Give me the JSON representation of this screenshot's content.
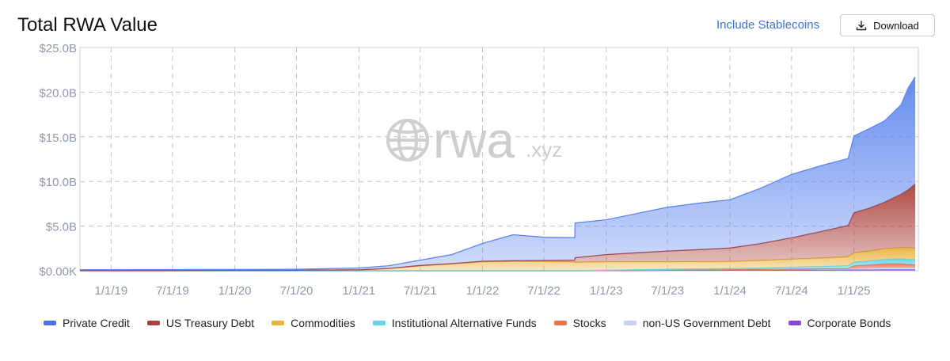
{
  "header": {
    "title": "Total RWA Value",
    "stablecoin_toggle": "Include Stablecoins",
    "download_label": "Download"
  },
  "watermark": {
    "text": "rwa",
    "suffix": ".xyz"
  },
  "chart_data": {
    "type": "area",
    "title": "Total RWA Value",
    "xlabel": "",
    "ylabel": "",
    "ylim": [
      0,
      25
    ],
    "y_unit": "B USD",
    "yticks": [
      0,
      5,
      10,
      15,
      20,
      25
    ],
    "ytick_labels": [
      "$0.00K",
      "$5.0B",
      "$10.0B",
      "$15.0B",
      "$20.0B",
      "$25.0B"
    ],
    "xlim": [
      "2018-10-01",
      "2025-07-10"
    ],
    "xticks": [
      "2019-01-01",
      "2019-07-01",
      "2020-01-01",
      "2020-07-01",
      "2021-01-01",
      "2021-07-01",
      "2022-01-01",
      "2022-07-01",
      "2023-01-01",
      "2023-07-01",
      "2024-01-01",
      "2024-07-01",
      "2025-01-01"
    ],
    "xtick_labels": [
      "1/1/19",
      "7/1/19",
      "1/1/20",
      "7/1/20",
      "1/1/21",
      "7/1/21",
      "1/1/22",
      "7/1/22",
      "1/1/23",
      "7/1/23",
      "1/1/24",
      "7/1/24",
      "1/1/25"
    ],
    "grid": true,
    "stacked": true,
    "legend_position": "bottom",
    "x": [
      "2018-10-01",
      "2019-01-01",
      "2019-07-01",
      "2020-01-01",
      "2020-07-01",
      "2021-01-01",
      "2021-04-01",
      "2021-07-01",
      "2021-10-01",
      "2022-01-01",
      "2022-04-01",
      "2022-07-01",
      "2022-09-30",
      "2022-10-01",
      "2023-01-01",
      "2023-04-01",
      "2023-07-01",
      "2023-10-01",
      "2024-01-01",
      "2024-04-01",
      "2024-07-01",
      "2024-10-01",
      "2024-12-15",
      "2025-01-01",
      "2025-02-15",
      "2025-04-01",
      "2025-05-20",
      "2025-06-10",
      "2025-07-01"
    ],
    "series": [
      {
        "name": "Corporate Bonds",
        "color": "#8a45d6",
        "values": [
          0,
          0,
          0,
          0,
          0,
          0,
          0,
          0,
          0,
          0,
          0,
          0,
          0,
          0,
          0.02,
          0.03,
          0.04,
          0.05,
          0.06,
          0.07,
          0.08,
          0.09,
          0.1,
          0.1,
          0.1,
          0.12,
          0.12,
          0.12,
          0.12
        ]
      },
      {
        "name": "non-US Government Debt",
        "color": "#c3d1ec",
        "values": [
          0,
          0,
          0,
          0,
          0,
          0,
          0,
          0,
          0,
          0,
          0,
          0,
          0,
          0,
          0.02,
          0.03,
          0.04,
          0.05,
          0.06,
          0.08,
          0.1,
          0.12,
          0.14,
          0.15,
          0.2,
          0.25,
          0.25,
          0.25,
          0.25
        ]
      },
      {
        "name": "Stocks",
        "color": "#f0704a",
        "values": [
          0,
          0,
          0,
          0,
          0,
          0,
          0,
          0,
          0,
          0,
          0,
          0,
          0,
          0,
          0,
          0,
          0,
          0,
          0,
          0,
          0.01,
          0.02,
          0.03,
          0.3,
          0.35,
          0.4,
          0.4,
          0.35,
          0.3
        ]
      },
      {
        "name": "Institutional Alternative Funds",
        "color": "#5fd4ea",
        "values": [
          0,
          0,
          0,
          0,
          0,
          0,
          0,
          0,
          0,
          0,
          0,
          0,
          0,
          0,
          0.02,
          0.05,
          0.08,
          0.1,
          0.12,
          0.15,
          0.2,
          0.25,
          0.3,
          0.4,
          0.45,
          0.5,
          0.55,
          0.55,
          0.55
        ]
      },
      {
        "name": "Commodities",
        "color": "#e8b23a",
        "values": [
          0.02,
          0.02,
          0.03,
          0.04,
          0.05,
          0.1,
          0.25,
          0.55,
          0.75,
          1.0,
          1.05,
          1.05,
          1.0,
          0.95,
          0.95,
          0.9,
          0.85,
          0.82,
          0.8,
          0.85,
          0.9,
          0.95,
          1.0,
          1.05,
          1.1,
          1.2,
          1.25,
          1.3,
          1.3
        ]
      },
      {
        "name": "US Treasury Debt",
        "color": "#a9403a",
        "values": [
          0,
          0,
          0,
          0,
          0.01,
          0.01,
          0.02,
          0.04,
          0.05,
          0.06,
          0.08,
          0.1,
          0.2,
          0.5,
          0.8,
          1.0,
          1.2,
          1.35,
          1.5,
          1.9,
          2.4,
          3.0,
          3.5,
          4.5,
          4.8,
          5.2,
          6.0,
          6.5,
          7.2
        ]
      },
      {
        "name": "Private Credit",
        "color": "#5d85ee",
        "values": [
          0.1,
          0.1,
          0.1,
          0.1,
          0.1,
          0.2,
          0.3,
          0.6,
          1.0,
          2.0,
          2.9,
          2.6,
          2.5,
          3.9,
          3.9,
          4.4,
          4.9,
          5.2,
          5.4,
          6.2,
          7.1,
          7.4,
          7.5,
          8.6,
          8.9,
          9.1,
          10.0,
          11.4,
          12.0
        ]
      }
    ]
  },
  "legend": [
    {
      "label": "Private Credit",
      "color": "#4a74e6"
    },
    {
      "label": "US Treasury Debt",
      "color": "#a9403a"
    },
    {
      "label": "Commodities",
      "color": "#e8b23a"
    },
    {
      "label": "Institutional Alternative Funds",
      "color": "#5fd4ea"
    },
    {
      "label": "Stocks",
      "color": "#f0704a"
    },
    {
      "label": "non-US Government Debt",
      "color": "#c3d1ec"
    },
    {
      "label": "Corporate Bonds",
      "color": "#8a45d6"
    }
  ]
}
